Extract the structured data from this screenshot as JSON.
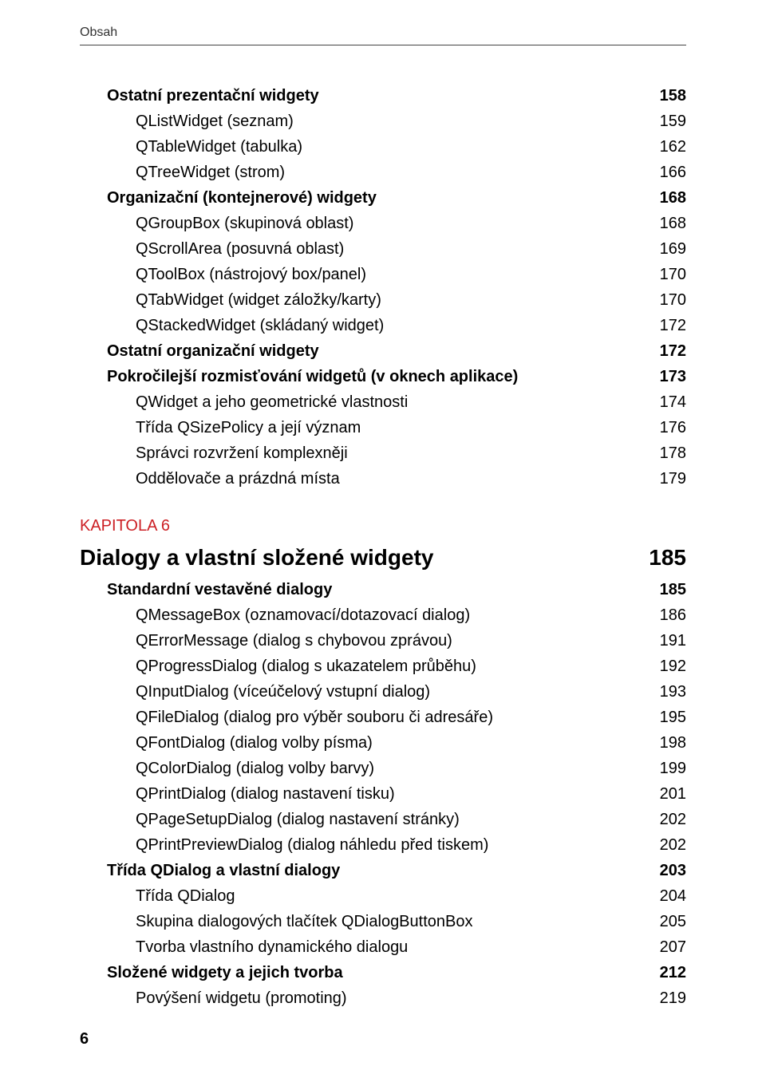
{
  "running_head": "Obsah",
  "page_number": "6",
  "kapitola_eyebrow": "KAPITOLA 6",
  "chapter6": {
    "title": "Dialogy a vlastní složené widgety",
    "page": "185"
  },
  "block_a": [
    {
      "level": 1,
      "label": "Ostatní prezentační widgety",
      "page": "158"
    },
    {
      "level": 2,
      "label": "QListWidget (seznam)",
      "page": "159"
    },
    {
      "level": 2,
      "label": "QTableWidget (tabulka)",
      "page": "162"
    },
    {
      "level": 2,
      "label": "QTreeWidget (strom)",
      "page": "166"
    },
    {
      "level": 1,
      "label": "Organizační (kontejnerové) widgety",
      "page": "168"
    },
    {
      "level": 2,
      "label": "QGroupBox (skupinová oblast)",
      "page": "168"
    },
    {
      "level": 2,
      "label": "QScrollArea (posuvná oblast)",
      "page": "169"
    },
    {
      "level": 2,
      "label": "QToolBox (nástrojový box/panel)",
      "page": "170"
    },
    {
      "level": 2,
      "label": "QTabWidget (widget záložky/karty)",
      "page": "170"
    },
    {
      "level": 2,
      "label": "QStackedWidget (skládaný widget)",
      "page": "172"
    },
    {
      "level": 1,
      "label": "Ostatní organizační widgety",
      "page": "172"
    },
    {
      "level": 1,
      "label": "Pokročilejší rozmisťování widgetů (v oknech aplikace)",
      "page": "173"
    },
    {
      "level": 2,
      "label": "QWidget a jeho geometrické vlastnosti",
      "page": "174"
    },
    {
      "level": 2,
      "label": "Třída QSizePolicy a její význam",
      "page": "176"
    },
    {
      "level": 2,
      "label": "Správci rozvržení komplexněji",
      "page": "178"
    },
    {
      "level": 2,
      "label": "Oddělovače a prázdná místa",
      "page": "179"
    }
  ],
  "block_b": [
    {
      "level": 1,
      "label": "Standardní vestavěné dialogy",
      "page": "185"
    },
    {
      "level": 2,
      "label": "QMessageBox (oznamovací/dotazovací dialog)",
      "page": "186"
    },
    {
      "level": 2,
      "label": "QErrorMessage (dialog s chybovou zprávou)",
      "page": "191"
    },
    {
      "level": 2,
      "label": "QProgressDialog (dialog s ukazatelem průběhu)",
      "page": "192"
    },
    {
      "level": 2,
      "label": "QInputDialog (víceúčelový vstupní dialog)",
      "page": "193"
    },
    {
      "level": 2,
      "label": "QFileDialog (dialog pro výběr souboru či adresáře)",
      "page": "195"
    },
    {
      "level": 2,
      "label": "QFontDialog (dialog volby písma)",
      "page": "198"
    },
    {
      "level": 2,
      "label": "QColorDialog (dialog volby barvy)",
      "page": "199"
    },
    {
      "level": 2,
      "label": "QPrintDialog (dialog nastavení tisku)",
      "page": "201"
    },
    {
      "level": 2,
      "label": "QPageSetupDialog (dialog nastavení stránky)",
      "page": "202"
    },
    {
      "level": 2,
      "label": "QPrintPreviewDialog (dialog náhledu před tiskem)",
      "page": "202"
    },
    {
      "level": 1,
      "label": "Třída QDialog a vlastní dialogy",
      "page": "203"
    },
    {
      "level": 2,
      "label": "Třída QDialog",
      "page": "204"
    },
    {
      "level": 2,
      "label": "Skupina dialogových tlačítek QDialogButtonBox",
      "page": "205"
    },
    {
      "level": 2,
      "label": "Tvorba vlastního dynamického dialogu",
      "page": "207"
    },
    {
      "level": 1,
      "label": "Složené widgety a jejich tvorba",
      "page": "212"
    },
    {
      "level": 2,
      "label": "Povýšení widgetu (promoting)",
      "page": "219"
    }
  ]
}
